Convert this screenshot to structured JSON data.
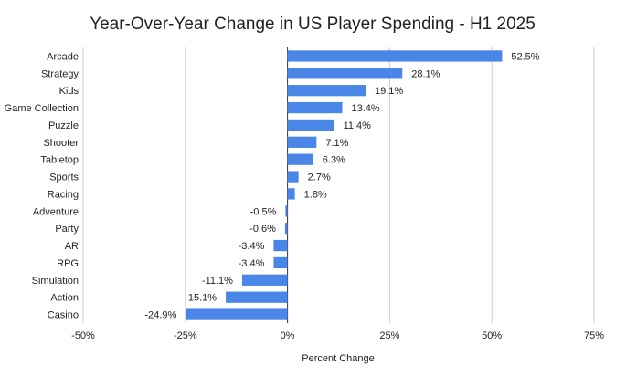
{
  "chart_data": {
    "type": "bar",
    "orientation": "horizontal",
    "title": "Year-Over-Year Change in US Player Spending - H1 2025",
    "xlabel": "Percent Change",
    "ylabel": "",
    "xlim": [
      -50,
      75
    ],
    "x_ticks": [
      -50,
      -25,
      0,
      25,
      50,
      75
    ],
    "x_tick_labels": [
      "-50%",
      "-25%",
      "0%",
      "25%",
      "50%",
      "75%"
    ],
    "grid": "vertical",
    "bar_color": "#4a86e8",
    "categories": [
      "Arcade",
      "Strategy",
      "Kids",
      "Game Collection",
      "Puzzle",
      "Shooter",
      "Tabletop",
      "Sports",
      "Racing",
      "Adventure",
      "Party",
      "AR",
      "RPG",
      "Simulation",
      "Action",
      "Casino"
    ],
    "values": [
      52.5,
      28.1,
      19.1,
      13.4,
      11.4,
      7.1,
      6.3,
      2.7,
      1.8,
      -0.5,
      -0.6,
      -3.4,
      -3.4,
      -11.1,
      -15.1,
      -24.9
    ],
    "value_labels": [
      "52.5%",
      "28.1%",
      "19.1%",
      "13.4%",
      "11.4%",
      "7.1%",
      "6.3%",
      "2.7%",
      "1.8%",
      "-0.5%",
      "-0.6%",
      "-3.4%",
      "-3.4%",
      "-11.1%",
      "-15.1%",
      "-24.9%"
    ]
  }
}
